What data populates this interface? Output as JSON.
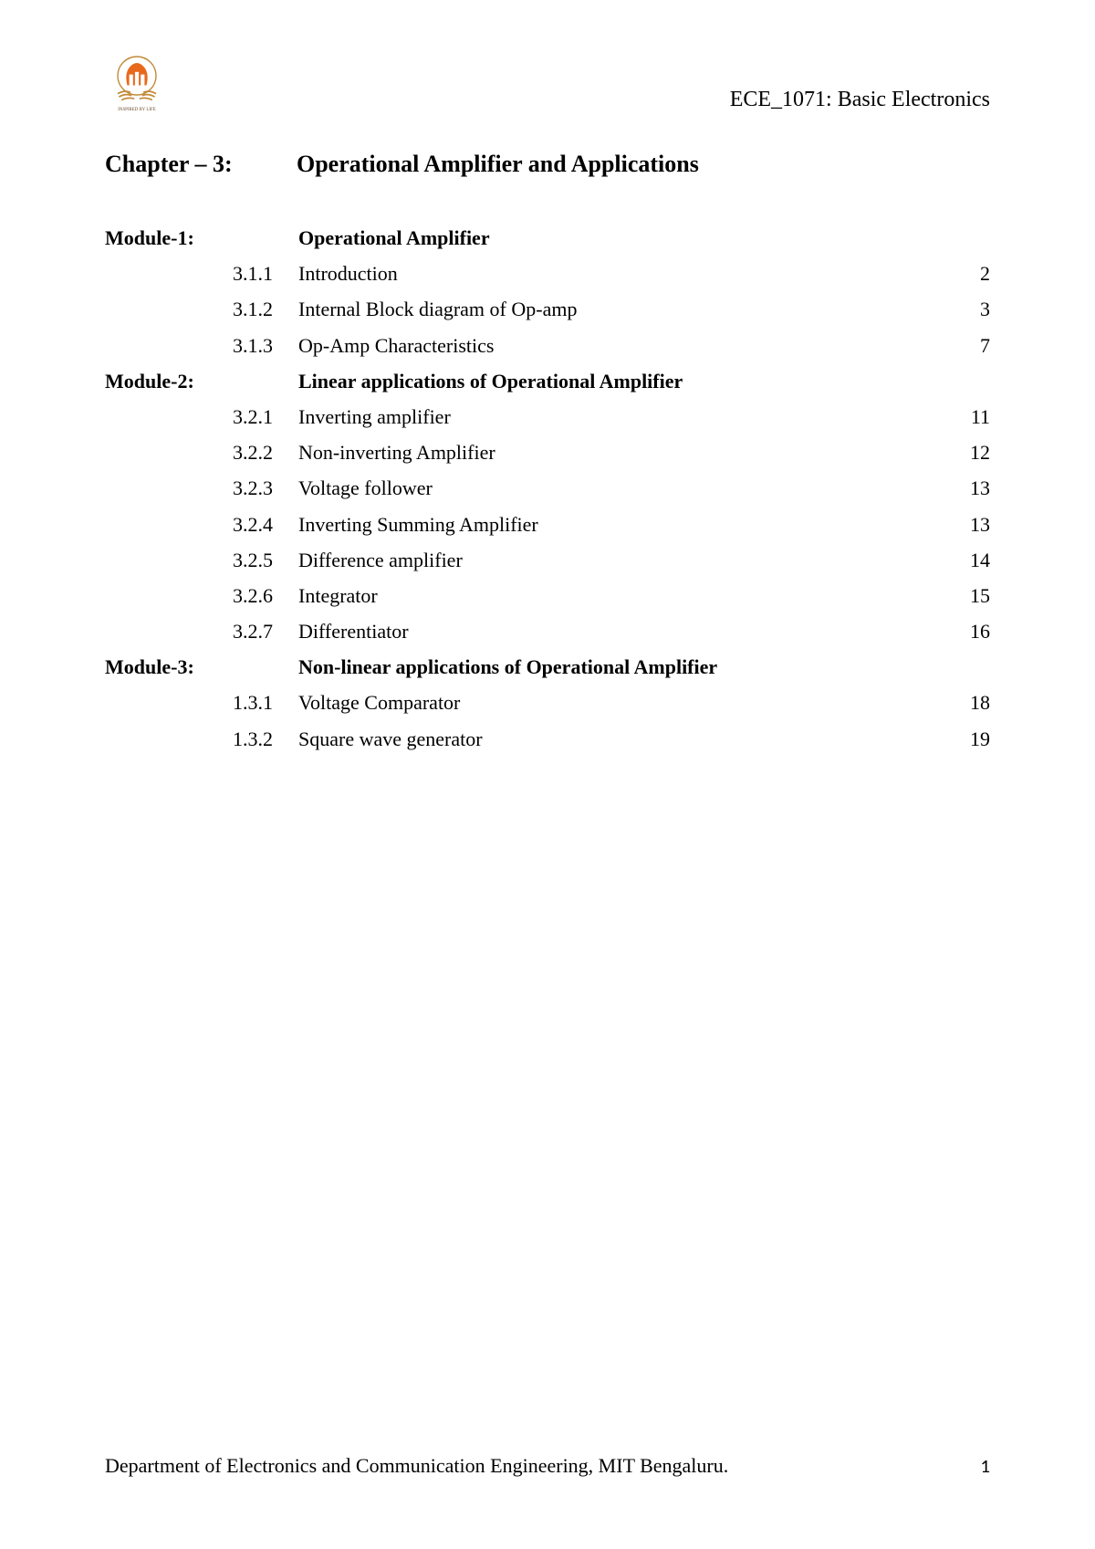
{
  "header": {
    "course_code": "ECE_1071: Basic Electronics"
  },
  "chapter": {
    "label": "Chapter – 3:",
    "title": "Operational Amplifier and Applications"
  },
  "toc": [
    {
      "module": "Module-1:",
      "num": "",
      "topic": "Operational Amplifier",
      "page": "",
      "bold": true
    },
    {
      "module": "",
      "num": "3.1.1",
      "topic": "Introduction",
      "page": "2",
      "bold": false
    },
    {
      "module": "",
      "num": "3.1.2",
      "topic": "Internal Block diagram of Op-amp",
      "page": "3",
      "bold": false
    },
    {
      "module": "",
      "num": "3.1.3",
      "topic": "Op-Amp Characteristics",
      "page": "7",
      "bold": false
    },
    {
      "module": "Module-2:",
      "num": "",
      "topic": "Linear applications of Operational Amplifier",
      "page": "",
      "bold": true
    },
    {
      "module": "",
      "num": "3.2.1",
      "topic": "Inverting amplifier",
      "page": "11",
      "bold": false
    },
    {
      "module": "",
      "num": "3.2.2",
      "topic": " Non-inverting Amplifier",
      "page": "12",
      "bold": false
    },
    {
      "module": "",
      "num": "3.2.3",
      "topic": "Voltage follower",
      "page": "13",
      "bold": false
    },
    {
      "module": "",
      "num": "3.2.4",
      "topic": "Inverting Summing Amplifier",
      "page": "13",
      "bold": false
    },
    {
      "module": "",
      "num": "3.2.5",
      "topic": "Difference amplifier",
      "page": "14",
      "bold": false
    },
    {
      "module": "",
      "num": "3.2.6",
      "topic": "Integrator",
      "page": "15",
      "bold": false
    },
    {
      "module": "",
      "num": "3.2.7",
      "topic": "Differentiator",
      "page": "16",
      "bold": false
    },
    {
      "module": "Module-3:",
      "num": "",
      "topic": "Non-linear applications of Operational Amplifier",
      "page": "",
      "bold": true
    },
    {
      "module": "",
      "num": "1.3.1",
      "topic": "Voltage Comparator",
      "page": "18",
      "bold": false
    },
    {
      "module": "",
      "num": "1.3.2",
      "topic": "Square wave generator",
      "page": "19",
      "bold": false
    }
  ],
  "footer": {
    "text": "Department of Electronics and Communication Engineering, MIT Bengaluru.",
    "page": "1"
  },
  "logo": {
    "colors": {
      "orange": "#e8691b",
      "laurel": "#c28a3a",
      "text": "#6b4a2a"
    }
  }
}
